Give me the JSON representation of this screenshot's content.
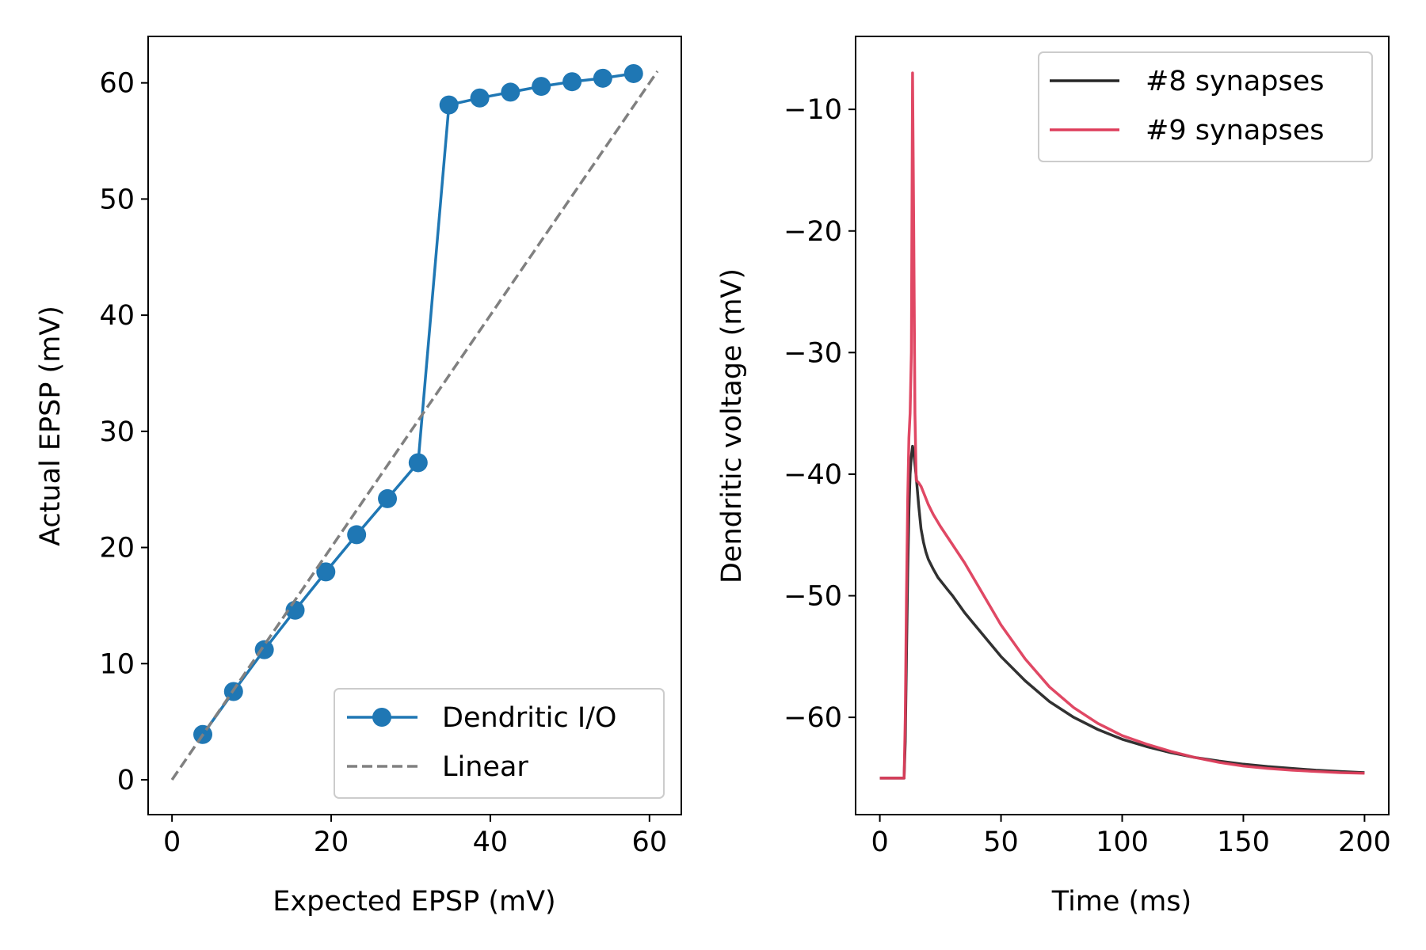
{
  "chart_data": [
    {
      "type": "line",
      "xlabel": "Expected EPSP (mV)",
      "ylabel": "Actual EPSP (mV)",
      "xlim": [
        -3,
        64
      ],
      "ylim": [
        -3,
        64
      ],
      "xticks": [
        0,
        20,
        40,
        60
      ],
      "yticks": [
        0,
        10,
        20,
        30,
        40,
        50,
        60
      ],
      "grid": false,
      "legend_position": "lower-right",
      "series": [
        {
          "name": "Dendritic I/O",
          "style": "solid-with-markers",
          "color": "#1f77b4",
          "x": [
            3.87,
            7.73,
            11.6,
            15.47,
            19.33,
            23.2,
            27.07,
            30.93,
            34.8,
            38.67,
            42.53,
            46.4,
            50.27,
            54.13,
            58.0
          ],
          "y": [
            3.9,
            7.6,
            11.2,
            14.6,
            17.9,
            21.1,
            24.2,
            27.3,
            58.1,
            58.7,
            59.2,
            59.7,
            60.1,
            60.4,
            60.8
          ]
        },
        {
          "name": "Linear",
          "style": "dashed",
          "color": "#808080",
          "x": [
            0,
            61
          ],
          "y": [
            0,
            61
          ]
        }
      ]
    },
    {
      "type": "line",
      "xlabel": "Time (ms)",
      "ylabel": "Dendritic voltage (mV)",
      "xlim": [
        -10,
        210
      ],
      "ylim": [
        -68,
        -4
      ],
      "xticks": [
        0,
        50,
        100,
        150,
        200
      ],
      "yticks": [
        -10,
        -20,
        -30,
        -40,
        -50,
        -60
      ],
      "ytick_labels": [
        "−10",
        "−20",
        "−30",
        "−40",
        "−50",
        "−60"
      ],
      "grid": false,
      "legend_position": "upper-right",
      "series": [
        {
          "name": "#8 synapses",
          "color": "#262626",
          "x": [
            0,
            10,
            10.5,
            11,
            11.5,
            12,
            12.5,
            13,
            13.5,
            14,
            15,
            16,
            17,
            18,
            19,
            20,
            22,
            24,
            26,
            28,
            30,
            35,
            40,
            50,
            60,
            70,
            80,
            90,
            100,
            110,
            120,
            130,
            140,
            150,
            160,
            170,
            180,
            190,
            200
          ],
          "y": [
            -65,
            -65,
            -62,
            -55,
            -48,
            -43,
            -40,
            -38.5,
            -37.7,
            -38.2,
            -40.2,
            -42.5,
            -44.5,
            -45.6,
            -46.4,
            -47,
            -47.8,
            -48.5,
            -49,
            -49.5,
            -50,
            -51.4,
            -52.6,
            -55,
            -57,
            -58.7,
            -60,
            -61,
            -61.8,
            -62.4,
            -62.9,
            -63.3,
            -63.6,
            -63.85,
            -64.05,
            -64.2,
            -64.35,
            -64.45,
            -64.55
          ]
        },
        {
          "name": "#9 synapses",
          "color": "#de3e5c",
          "x": [
            0,
            10,
            10.5,
            11,
            11.5,
            12,
            12.5,
            13,
            13.5,
            14,
            14.5,
            15,
            16,
            17,
            18,
            20,
            22,
            25,
            30,
            35,
            40,
            50,
            60,
            70,
            80,
            90,
            100,
            110,
            120,
            130,
            140,
            150,
            160,
            170,
            180,
            190,
            200
          ],
          "y": [
            -65,
            -65,
            -60,
            -50,
            -42,
            -37,
            -35,
            -30,
            -7,
            -20,
            -35,
            -40.5,
            -40.7,
            -41,
            -41.5,
            -42.5,
            -43.3,
            -44.3,
            -45.8,
            -47.3,
            -49,
            -52.4,
            -55.2,
            -57.5,
            -59.2,
            -60.5,
            -61.5,
            -62.2,
            -62.8,
            -63.3,
            -63.7,
            -64,
            -64.2,
            -64.35,
            -64.45,
            -64.55,
            -64.6
          ]
        }
      ]
    }
  ]
}
